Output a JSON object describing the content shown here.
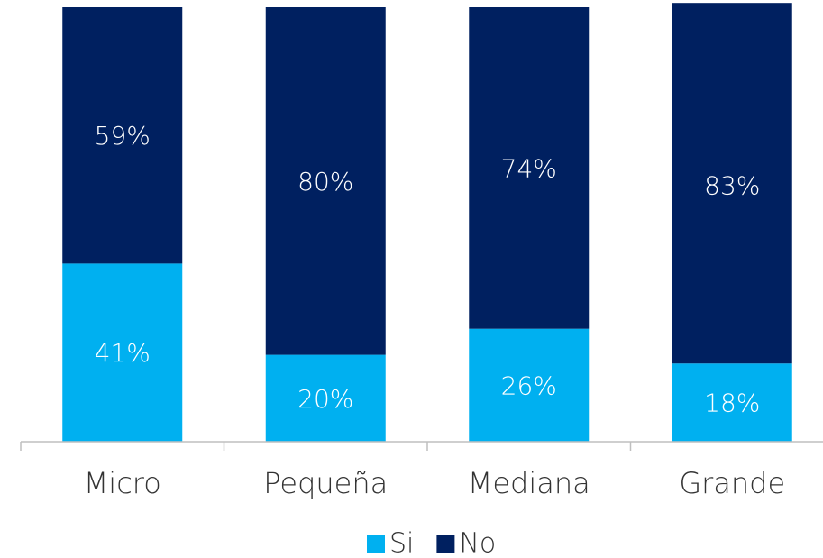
{
  "chart_data": {
    "type": "stacked_bar",
    "categories": [
      "Micro",
      "Pequeña",
      "Mediana",
      "Grande"
    ],
    "series": [
      {
        "name": "Si",
        "color": "#00b0f0",
        "values": [
          41,
          20,
          26,
          18
        ],
        "value_labels": [
          "41%",
          "20%",
          "26%",
          "18%"
        ]
      },
      {
        "name": "No",
        "color": "#002060",
        "values": [
          59,
          80,
          74,
          83
        ],
        "value_labels": [
          "59%",
          "80%",
          "74%",
          "83%"
        ]
      }
    ],
    "ylim": [
      0,
      100
    ],
    "legend": "bottom"
  }
}
